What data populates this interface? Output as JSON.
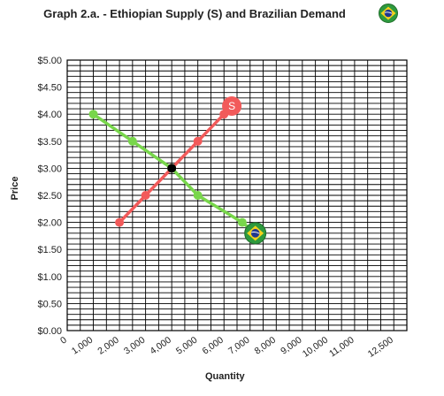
{
  "chart_data": {
    "type": "line",
    "title": "Graph 2.a. - Ethiopian Supply (S) and Brazilian Demand",
    "xlabel": "Quantity",
    "ylabel": "Price",
    "ylim": [
      0,
      5
    ],
    "xlim": [
      0,
      13000
    ],
    "grid": true,
    "x_tick_labels": [
      "0",
      "1,000",
      "2,000",
      "3,000",
      "4,000",
      "5,000",
      "6,000",
      "7,000",
      "8,000",
      "9,000",
      "10,000",
      "11,000",
      "12,500"
    ],
    "y_tick_labels": [
      "$0.00",
      "$0.50",
      "$1.00",
      "$1.50",
      "$2.00",
      "$2.50",
      "$3.00",
      "$3.50",
      "$4.00",
      "$4.50",
      "$5.00"
    ],
    "series": [
      {
        "name": "S",
        "color": "#f25a5a",
        "marker": "S-label-circle",
        "points": [
          [
            2000,
            2.0
          ],
          [
            3000,
            2.5
          ],
          [
            4000,
            3.0
          ],
          [
            5000,
            3.5
          ],
          [
            6000,
            4.0
          ],
          [
            6300,
            4.15
          ]
        ]
      },
      {
        "name": "",
        "color": "#78d64b",
        "marker": "brazil-flag-icon",
        "points": [
          [
            1000,
            4.0
          ],
          [
            2500,
            3.5
          ],
          [
            4000,
            3.0
          ],
          [
            5000,
            2.5
          ],
          [
            6700,
            2.0
          ],
          [
            7200,
            1.8
          ]
        ]
      }
    ],
    "equilibrium": {
      "x": 4000,
      "y": 3.0,
      "color": "#000000"
    }
  },
  "icons": {
    "title_flag": "brazil-flag-icon",
    "end_marker_demand": "brazil-flag-icon"
  }
}
